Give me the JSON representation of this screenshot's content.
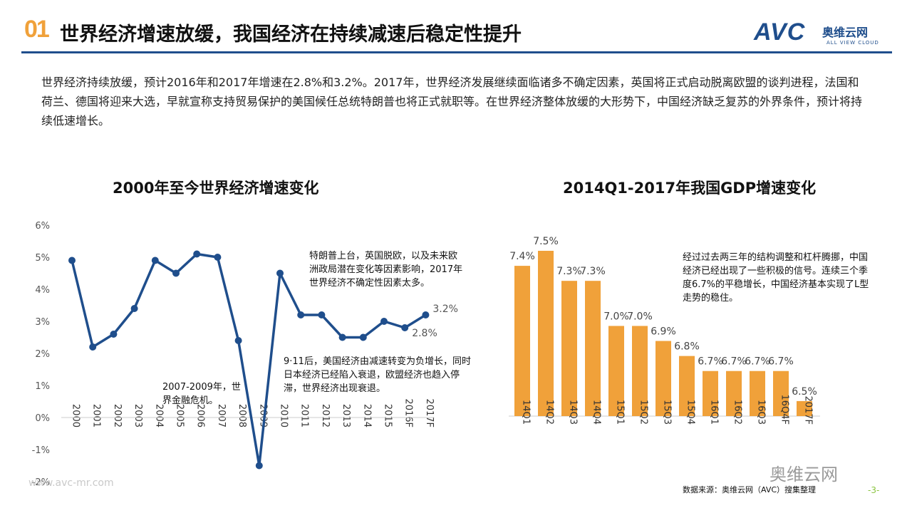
{
  "header": {
    "number": "01",
    "title": "世界经济增速放缓，我国经济在持续减速后稳定性提升"
  },
  "logo": {
    "brand": "AVC",
    "name_cn": "奥维云网",
    "name_en": "ALL VIEW CLOUD"
  },
  "intro": "世界经济持续放缓，预计2016年和2017年增速在2.8%和3.2%。2017年，世界经济发展继续面临诸多不确定因素，英国将正式启动脱离欧盟的谈判进程，法国和荷兰、德国将迎来大选，早就宣称支持贸易保护的美国候任总统特朗普也将正式就职等。在世界经济整体放缓的大形势下，中国经济缺乏复苏的外界条件，预计将持续低速增长。",
  "colors": {
    "line": "#1f4e8c",
    "bar": "#f0a13a",
    "accent": "#f0a13a"
  },
  "chart_data": [
    {
      "type": "line",
      "title": "2000年至今世界经济增速变化",
      "xlabel": "",
      "ylabel": "",
      "categories": [
        "2000",
        "2001",
        "2002",
        "2003",
        "2004",
        "2005",
        "2006",
        "2007",
        "2008",
        "2009",
        "2010",
        "2011",
        "2012",
        "2013",
        "2014",
        "2015",
        "2016F",
        "2017F"
      ],
      "values": [
        4.9,
        2.2,
        2.6,
        3.4,
        4.9,
        4.5,
        5.1,
        5.0,
        2.4,
        -1.5,
        4.5,
        3.2,
        3.2,
        2.5,
        2.5,
        3.0,
        2.8,
        3.2
      ],
      "y_ticks": [
        "6%",
        "5%",
        "4%",
        "3%",
        "2%",
        "1%",
        "0%",
        "-1%",
        "-2%"
      ],
      "ylim": [
        -2,
        6
      ],
      "data_labels": {
        "16": "2.8%",
        "17": "3.2%"
      },
      "annotations": {
        "top": "特朗普上台，英国脱欧，以及未来欧洲政局潜在变化等因素影响，2017年世界经济不确定性因素太多。",
        "middle": "9·11后，美国经济由减速转变为负增长，同时日本经济已经陷入衰退，欧盟经济也趋入停滞，世界经济出现衰退。",
        "bottom": "2007-2009年，世界金融危机。"
      }
    },
    {
      "type": "bar",
      "title": "2014Q1-2017年我国GDP增速变化",
      "categories": [
        "14Q1",
        "14Q2",
        "14Q3",
        "14Q4",
        "15Q1",
        "15Q2",
        "15Q3",
        "15Q4",
        "16Q1",
        "16Q2",
        "16Q3",
        "16Q4F",
        "2017F"
      ],
      "values": [
        7.4,
        7.5,
        7.3,
        7.3,
        7.0,
        7.0,
        6.9,
        6.8,
        6.7,
        6.7,
        6.7,
        6.7,
        6.5
      ],
      "labels": [
        "7.4%",
        "7.5%",
        "7.3%",
        "7.3%",
        "7.0%",
        "7.0%",
        "6.9%",
        "6.8%",
        "6.7%",
        "6.7%",
        "6.7%",
        "6.7%",
        "6.5%"
      ],
      "ylim": [
        6.4,
        7.5
      ],
      "annotation": "经过过去两三年的结构调整和杠杆腾挪，中国经济已经出现了一些积极的信号。连续三个季度6.7%的平稳增长，中国经济基本实现了L型走势的稳住。"
    }
  ],
  "footer": {
    "url": "www.avc-mr.com",
    "source": "数据来源：奥维云网（AVC）搜集整理",
    "page": "-3-",
    "watermark": "奥维云网"
  }
}
